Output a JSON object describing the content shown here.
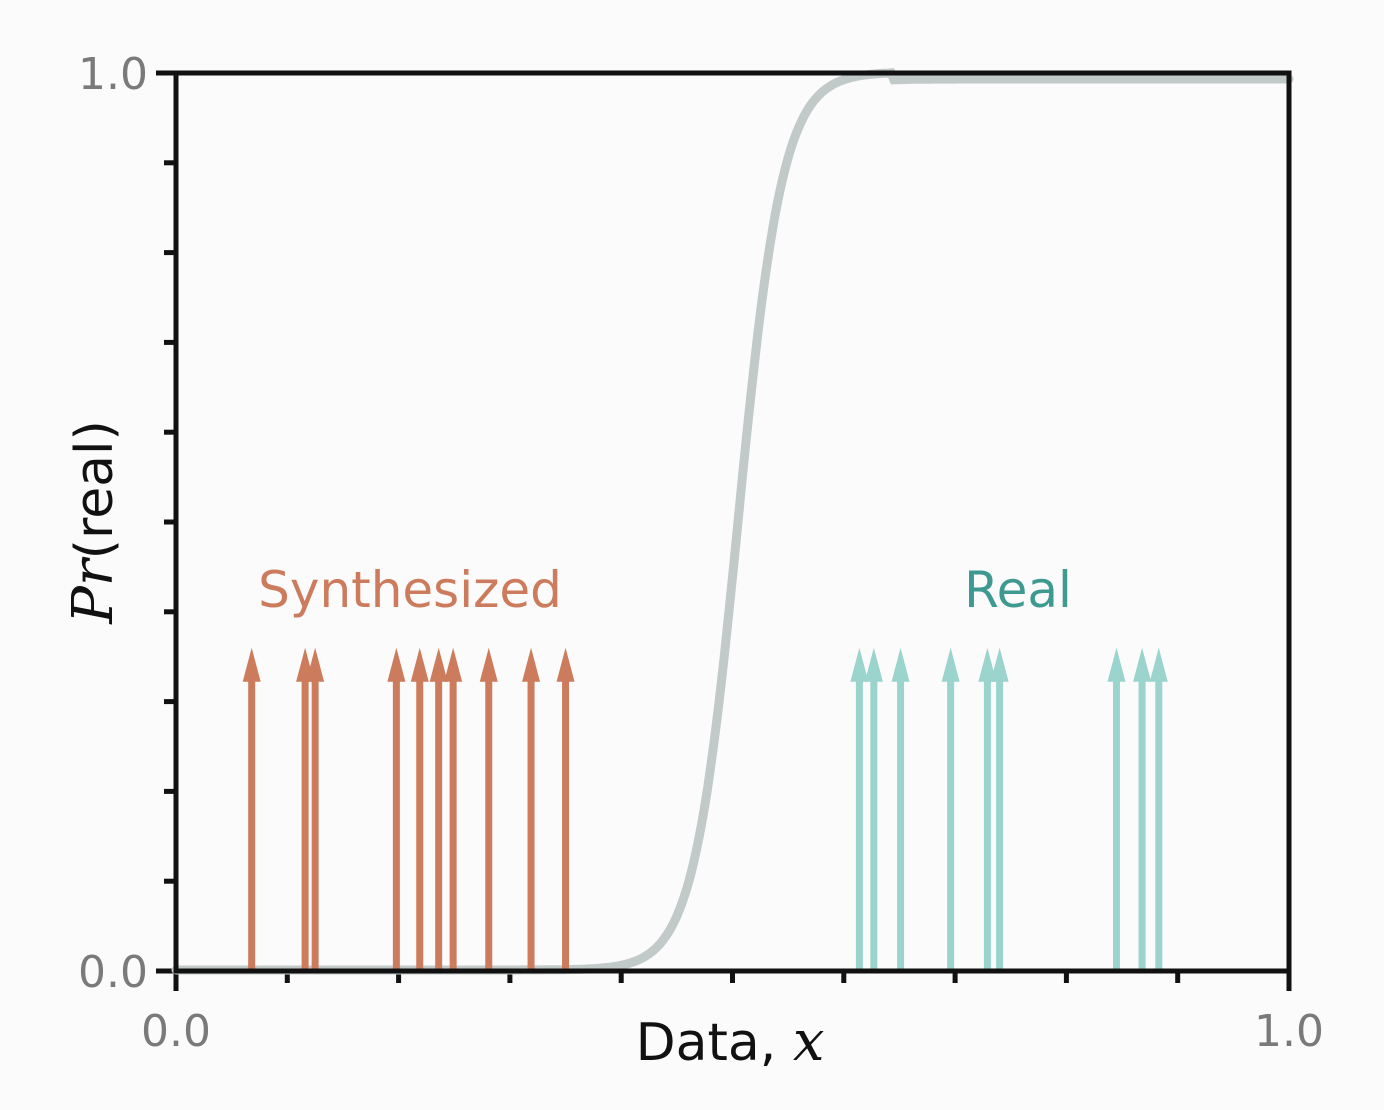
{
  "chart_data": {
    "type": "line",
    "title": "",
    "xlabel": {
      "text": "Data, ",
      "math": "x"
    },
    "ylabel": {
      "math": "Pr",
      "text": "(real)"
    },
    "xlim": [
      0.0,
      1.0
    ],
    "ylim": [
      0.0,
      1.0
    ],
    "x_tick_labels": [
      "0.0",
      "1.0"
    ],
    "y_tick_labels": [
      "0.0",
      "1.0"
    ],
    "x_minor_ticks": [
      0.1,
      0.2,
      0.3,
      0.4,
      0.5,
      0.6,
      0.7,
      0.8,
      0.9
    ],
    "y_minor_ticks": [
      0.1,
      0.2,
      0.3,
      0.4,
      0.5,
      0.6,
      0.7,
      0.8,
      0.9
    ],
    "grid": false,
    "curve": {
      "kind": "logistic",
      "midpoint": 0.505,
      "steepness": 50,
      "color": "#c2c9c9"
    },
    "series": [
      {
        "name": "Synthesized",
        "color": "#cc7c5c",
        "arrow_height": 0.36,
        "x": [
          0.068,
          0.116,
          0.125,
          0.198,
          0.219,
          0.236,
          0.249,
          0.281,
          0.319,
          0.35
        ]
      },
      {
        "name": "Real",
        "color": "#9bd3cd",
        "label_color": "#3e9a90",
        "arrow_height": 0.36,
        "x": [
          0.614,
          0.627,
          0.651,
          0.696,
          0.729,
          0.74,
          0.845,
          0.868,
          0.883
        ]
      }
    ]
  }
}
